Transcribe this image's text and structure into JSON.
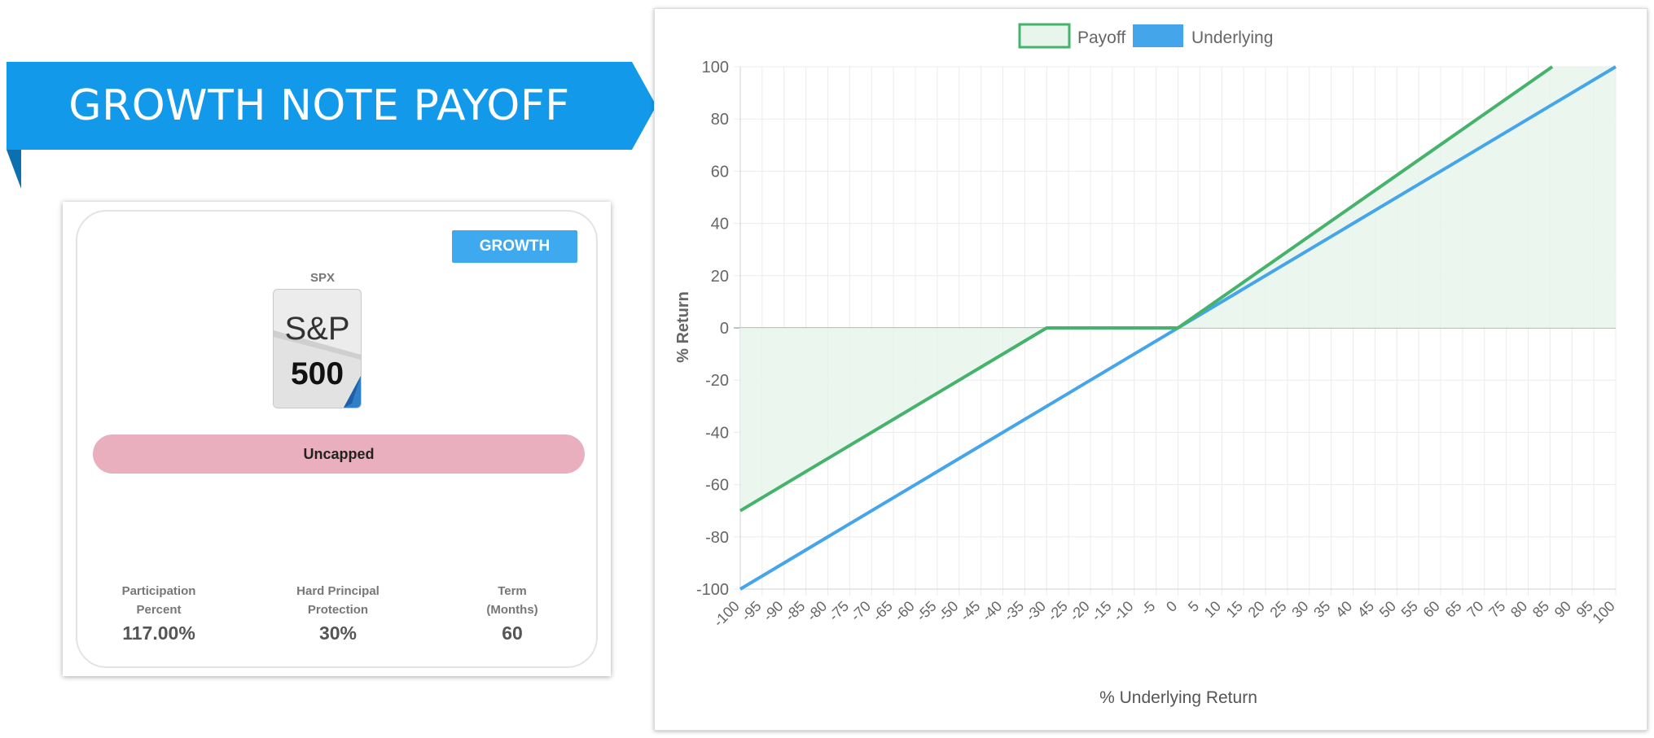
{
  "banner": {
    "title": "GROWTH NOTE PAYOFF",
    "color": "#1399ea"
  },
  "card": {
    "badge": "GROWTH",
    "ticker": "SPX",
    "logo": {
      "top": "S&P",
      "number": "500"
    },
    "cap_label": "Uncapped",
    "stats": [
      {
        "label_line1": "Participation",
        "label_line2": "Percent",
        "value": "117.00%"
      },
      {
        "label_line1": "Hard Principal",
        "label_line2": "Protection",
        "value": "30%"
      },
      {
        "label_line1": "Term",
        "label_line2": "(Months)",
        "value": "60"
      }
    ]
  },
  "chart_data": {
    "type": "line",
    "xlabel": "% Underlying Return",
    "ylabel": "% Return",
    "xlim": [
      -100,
      100
    ],
    "ylim": [
      -100,
      100
    ],
    "x_ticks": [
      -100,
      -95,
      -90,
      -85,
      -80,
      -75,
      -70,
      -65,
      -60,
      -55,
      -50,
      -45,
      -40,
      -35,
      -30,
      -25,
      -20,
      -15,
      -10,
      -5,
      0,
      5,
      10,
      15,
      20,
      25,
      30,
      35,
      40,
      45,
      50,
      55,
      60,
      65,
      70,
      75,
      80,
      85,
      90,
      95,
      100
    ],
    "y_ticks": [
      100,
      80,
      60,
      40,
      20,
      0,
      -20,
      -40,
      -60,
      -80,
      -100
    ],
    "grid": true,
    "legend_position": "top-center",
    "series": [
      {
        "name": "Payoff",
        "color": "#45b36b",
        "fill": "#e7f5ec",
        "x": [
          -100,
          -30,
          0,
          85.5
        ],
        "y": [
          -70,
          0,
          0,
          100
        ]
      },
      {
        "name": "Underlying",
        "color": "#45a5ea",
        "x": [
          -100,
          100
        ],
        "y": [
          -100,
          100
        ]
      }
    ]
  }
}
